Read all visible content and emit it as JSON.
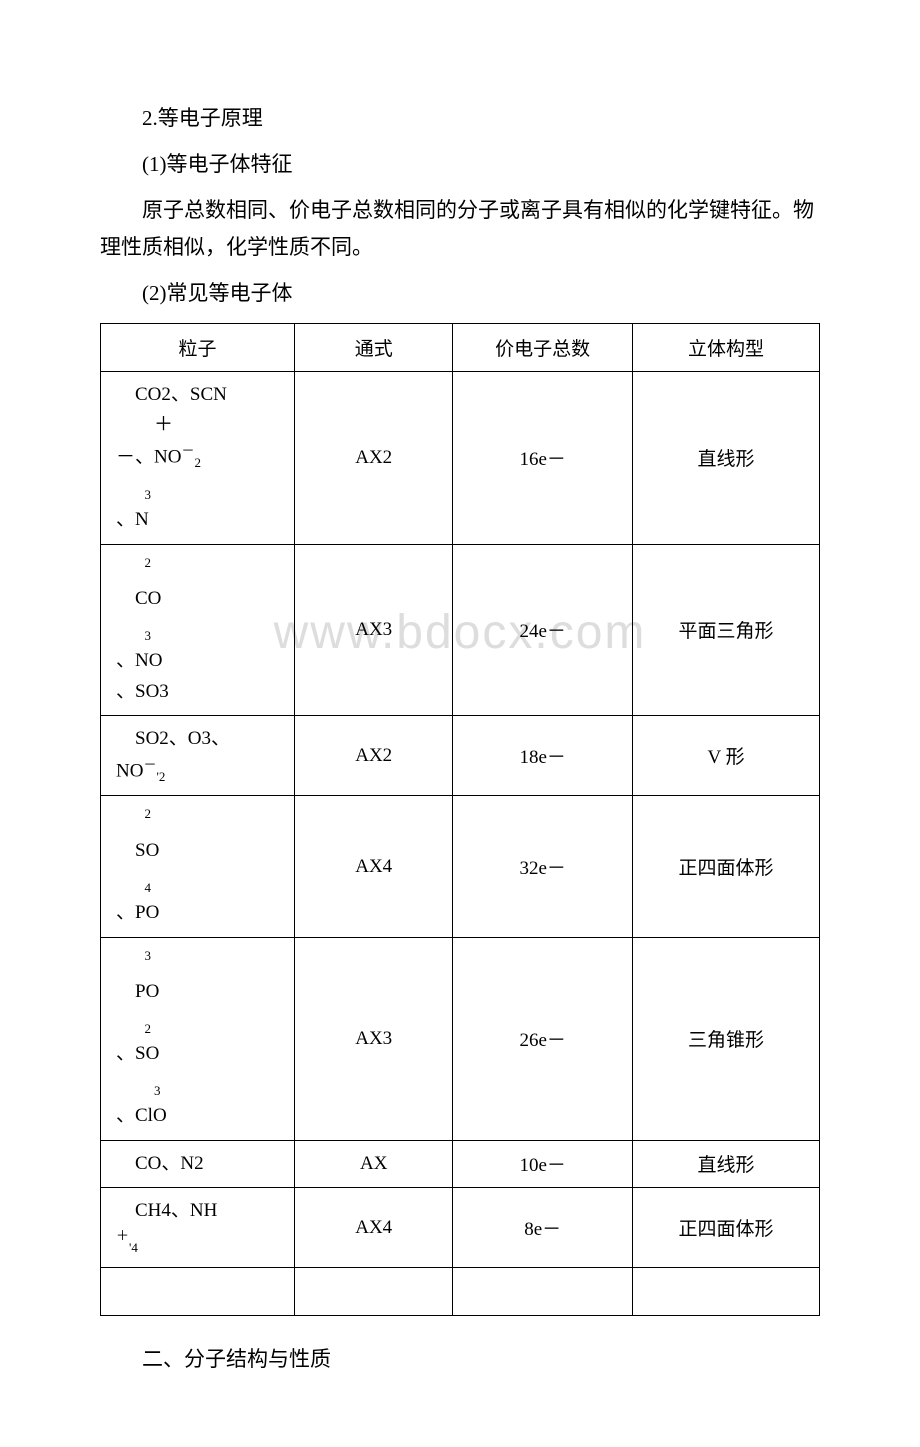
{
  "watermark": "www.bdocx.com",
  "text": {
    "p1": "2.等电子原理",
    "p2": "(1)等电子体特征",
    "p3": "原子总数相同、价电子总数相同的分子或离子具有相似的化学键特征。物理性质相似，化学性质不同。",
    "p4": "(2)常见等电子体",
    "p5": "二、分子结构与性质"
  },
  "table": {
    "headers": [
      "粒子",
      "通式",
      "价电子总数",
      "立体构型"
    ],
    "rows": [
      {
        "particle_html": "&nbsp;&nbsp;&nbsp;&nbsp;CO2、SCN<br>&nbsp;&nbsp;&nbsp;&nbsp;&nbsp;&nbsp;&nbsp;&nbsp;＋<br>－、NO<span class='sup'>－</span><span class='sub'>2</span><br>&nbsp;&nbsp;&nbsp;&nbsp;&nbsp;&nbsp;<span class='sub'>3</span><br>、N",
        "formula": "AX2",
        "electrons": "16e－",
        "shape": "直线形"
      },
      {
        "particle_html": "&nbsp;&nbsp;&nbsp;&nbsp;&nbsp;&nbsp;<span class='sup'>2</span><br>&nbsp;&nbsp;&nbsp;&nbsp;CO<br>&nbsp;&nbsp;&nbsp;&nbsp;&nbsp;&nbsp;<span class='sub'>3</span><br>、NO<br>、SO3",
        "formula": "AX3",
        "electrons": "24e－",
        "shape": "平面三角形"
      },
      {
        "particle_html": "&nbsp;&nbsp;&nbsp;&nbsp;SO2、O3、<br>NO<span class='sup'>－</span><span class='sub'>'</span><span class='sub'>2</span>",
        "formula": "AX2",
        "electrons": "18e－",
        "shape": "V 形"
      },
      {
        "particle_html": "&nbsp;&nbsp;&nbsp;&nbsp;&nbsp;&nbsp;<span class='sup'>2</span><br>&nbsp;&nbsp;&nbsp;&nbsp;SO<br>&nbsp;&nbsp;&nbsp;&nbsp;&nbsp;&nbsp;<span class='sub'>4</span><br>、PO",
        "formula": "AX4",
        "electrons": "32e－",
        "shape": "正四面体形"
      },
      {
        "particle_html": "&nbsp;&nbsp;&nbsp;&nbsp;&nbsp;&nbsp;<span class='sup'>3</span><br>&nbsp;&nbsp;&nbsp;&nbsp;PO<br>&nbsp;&nbsp;&nbsp;&nbsp;&nbsp;&nbsp;<span class='sub'>2</span><br>、SO<br>&nbsp;&nbsp;&nbsp;&nbsp;&nbsp;&nbsp;&nbsp;&nbsp;<span class='sub'>3</span><br>、ClO",
        "formula": "AX3",
        "electrons": "26e－",
        "shape": "三角锥形"
      },
      {
        "particle_html": "&nbsp;&nbsp;&nbsp;&nbsp;CO、N2",
        "formula": "AX",
        "electrons": "10e－",
        "shape": "直线形"
      },
      {
        "particle_html": "&nbsp;&nbsp;&nbsp;&nbsp;CH4、NH<br><span class='sup'>＋</span><span class='sub'>'</span><span class='sub'>4</span>",
        "formula": "AX4",
        "electrons": "8e－",
        "shape": "正四面体形"
      },
      {
        "particle_html": "&nbsp;",
        "formula": "",
        "electrons": "",
        "shape": ""
      }
    ],
    "col_widths": [
      "27%",
      "22%",
      "25%",
      "26%"
    ]
  },
  "styling": {
    "background_color": "#ffffff",
    "text_color": "#000000",
    "border_color": "#000000",
    "watermark_color": "#dddddd",
    "body_fontsize": 21,
    "table_fontsize": 19,
    "watermark_fontsize": 48
  }
}
